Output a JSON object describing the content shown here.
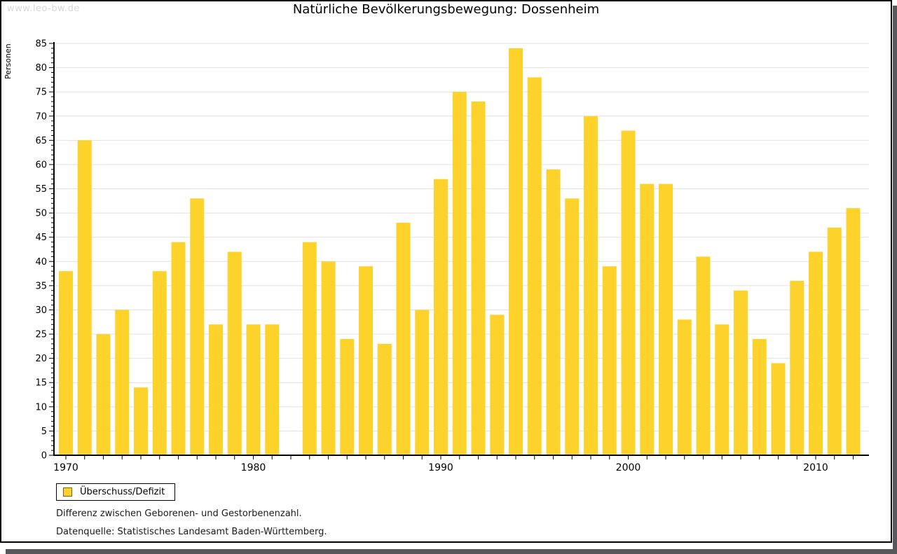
{
  "page": {
    "watermark": "www.leo-bw.de",
    "footnote1": "Differenz zwischen Geborenen- und Gestorbenenzahl.",
    "footnote2": "Datenquelle: Statistisches Landesamt Baden-Württemberg."
  },
  "colors": {
    "bar": "#FCD22B",
    "grid": "#E0E0E0",
    "axis": "#000000",
    "legend_swatch_border": "#6F6A1B",
    "panel_shadow": "#58585A",
    "watermark": "#D8D8D8"
  },
  "chart_data": {
    "type": "bar",
    "title": "Natürliche Bevölkerungsbewegung: Dossenheim",
    "ylabel": "Personen",
    "xlabel": "",
    "legend": "Überschuss/Defizit",
    "legend_position": "bottom-left",
    "grid": true,
    "ylim": [
      0,
      85
    ],
    "ytick_step": 5,
    "xtick_labels": [
      1970,
      1980,
      1990,
      2000,
      2010
    ],
    "years": [
      1970,
      1971,
      1972,
      1973,
      1974,
      1975,
      1976,
      1977,
      1978,
      1979,
      1980,
      1981,
      1982,
      1983,
      1984,
      1985,
      1986,
      1987,
      1988,
      1989,
      1990,
      1991,
      1992,
      1993,
      1994,
      1995,
      1996,
      1997,
      1998,
      1999,
      2000,
      2001,
      2002,
      2003,
      2004,
      2005,
      2006,
      2007,
      2008,
      2009,
      2010,
      2011,
      2012
    ],
    "values": [
      38,
      65,
      25,
      30,
      14,
      38,
      44,
      53,
      27,
      42,
      27,
      27,
      null,
      44,
      40,
      24,
      39,
      23,
      48,
      30,
      57,
      75,
      73,
      29,
      84,
      78,
      59,
      53,
      70,
      39,
      67,
      56,
      56,
      28,
      41,
      27,
      34,
      24,
      19,
      36,
      42,
      47,
      51
    ]
  }
}
